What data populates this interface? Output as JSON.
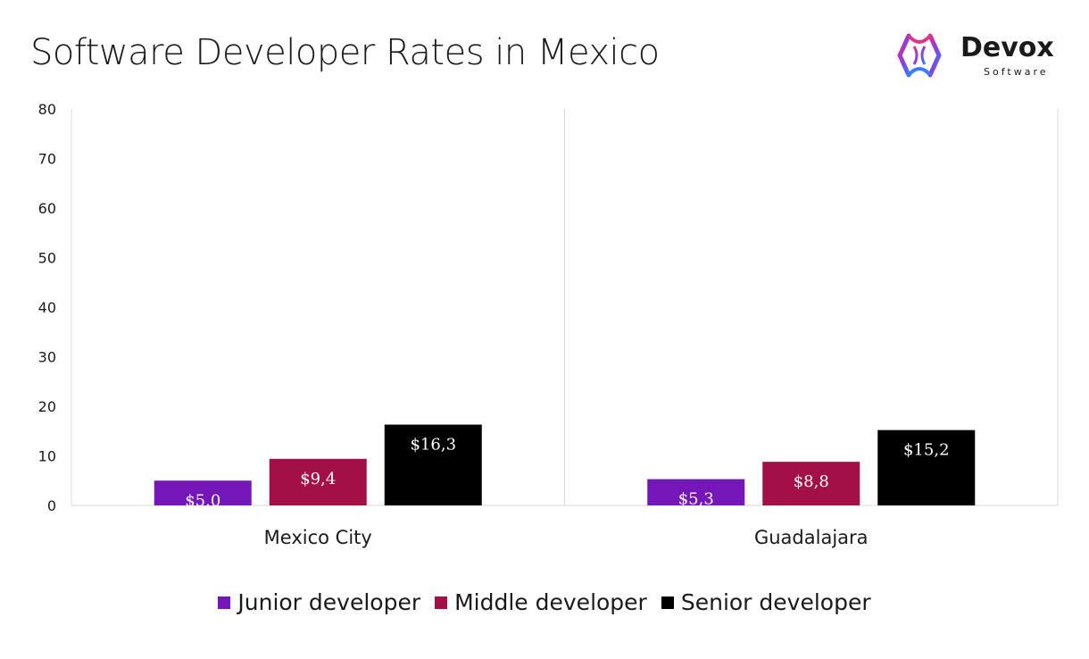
{
  "colors": {
    "junior": "#7517b8",
    "middle": "#a31047",
    "senior": "#000000",
    "grid": "#d9d9d9"
  },
  "logo": {
    "word": "Devox",
    "sub": "Software"
  },
  "chart_data": {
    "type": "bar",
    "title": "Software Developer Rates in Mexico",
    "categories": [
      "Mexico City",
      "Guadalajara"
    ],
    "series": [
      {
        "name": "Junior developer",
        "values": [
          5.0,
          5.3
        ],
        "labels": [
          "$5.0",
          "$5,3"
        ]
      },
      {
        "name": "Middle developer",
        "values": [
          9.4,
          8.8
        ],
        "labels": [
          "$9,4",
          "$8,8"
        ]
      },
      {
        "name": "Senior developer",
        "values": [
          16.3,
          15.2
        ],
        "labels": [
          "$16,3",
          "$15,2"
        ]
      }
    ],
    "yticks": [
      "0",
      "10",
      "20",
      "30",
      "40",
      "50",
      "60",
      "70",
      "80"
    ],
    "ylim": [
      0,
      80
    ],
    "legend_position": "bottom"
  }
}
